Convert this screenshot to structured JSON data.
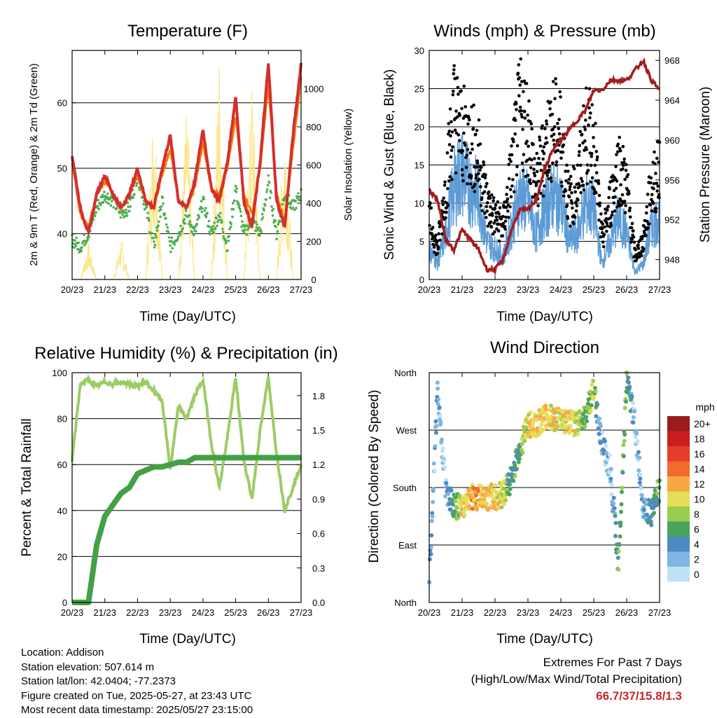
{
  "x_ticks": [
    "20/23",
    "21/23",
    "22/23",
    "23/23",
    "24/23",
    "25/23",
    "26/23",
    "27/23"
  ],
  "chart_data": [
    {
      "type": "line",
      "title": "Temperature (F)",
      "xlabel": "Time (Day/UTC)",
      "ylabel": "2m & 9m T (Red, Orange) & 2m Td (Green)",
      "y2label": "Solar Insolation (Yellow)",
      "ylim": [
        33,
        68
      ],
      "y_ticks": [
        40,
        50,
        60
      ],
      "y2lim": [
        0,
        1200
      ],
      "y2_ticks": [
        0,
        200,
        400,
        600,
        800,
        1000
      ],
      "x": [
        0,
        0.25,
        0.5,
        0.75,
        1,
        1.25,
        1.5,
        1.75,
        2,
        2.25,
        2.5,
        2.75,
        3,
        3.25,
        3.5,
        3.75,
        4,
        4.25,
        4.5,
        4.75,
        5,
        5.25,
        5.5,
        5.75,
        6,
        6.25,
        6.5,
        6.75,
        7
      ],
      "series": [
        {
          "name": "2m T",
          "color": "#d32f2f",
          "values": [
            52,
            44,
            40,
            46,
            49,
            46,
            44,
            46,
            50,
            45,
            44,
            50,
            55,
            45,
            44,
            48,
            56,
            47,
            45,
            51,
            61,
            45,
            41,
            51,
            66,
            45,
            41,
            55,
            66
          ]
        },
        {
          "name": "9m T",
          "color": "#f57c00",
          "values": [
            51,
            43,
            41,
            46,
            48,
            46,
            44,
            46,
            49,
            45,
            44,
            49,
            53,
            45,
            44,
            47,
            54,
            47,
            46,
            50,
            58,
            46,
            43,
            50,
            63,
            46,
            42,
            53,
            64
          ]
        },
        {
          "name": "2m Td",
          "color": "#4caf50",
          "values": [
            39,
            38,
            40,
            44,
            46,
            45,
            43,
            44,
            49,
            44,
            38,
            45,
            38,
            40,
            43,
            40,
            45,
            40,
            43,
            38,
            47,
            40,
            42,
            40,
            48,
            40,
            46,
            44,
            46
          ]
        },
        {
          "name": "Solar",
          "color": "#fde68a",
          "axis": "y2",
          "values": [
            0,
            0,
            200,
            0,
            0,
            0,
            220,
            0,
            0,
            0,
            1000,
            0,
            0,
            0,
            950,
            0,
            0,
            0,
            1200,
            0,
            0,
            0,
            1100,
            0,
            0,
            0,
            900,
            0,
            0
          ]
        }
      ]
    },
    {
      "type": "scatter",
      "title": "Winds (mph) & Pressure (mb)",
      "xlabel": "Time (Day/UTC)",
      "ylabel": "Sonic Wind & Gust (Blue, Black)",
      "y2label": "Station Pressure (Maroon)",
      "ylim": [
        0,
        30
      ],
      "y_ticks": [
        0,
        5,
        10,
        15,
        20,
        25,
        30
      ],
      "y2lim": [
        946,
        969
      ],
      "y2_ticks": [
        948,
        952,
        956,
        960,
        964,
        968
      ],
      "x": [
        0,
        0.25,
        0.5,
        0.75,
        1,
        1.25,
        1.5,
        1.75,
        2,
        2.25,
        2.5,
        2.75,
        3,
        3.25,
        3.5,
        3.75,
        4,
        4.25,
        4.5,
        4.75,
        5,
        5.25,
        5.5,
        5.75,
        6,
        6.25,
        6.5,
        6.75,
        7
      ],
      "series": [
        {
          "name": "Sonic Wind",
          "color": "#5c9bd6",
          "values": [
            4,
            2,
            6,
            12,
            14,
            12,
            11,
            5,
            4,
            3,
            7,
            11,
            10,
            6,
            9,
            11,
            10,
            5,
            6,
            10,
            9,
            2,
            5,
            8,
            6,
            1,
            2,
            7,
            8
          ]
        },
        {
          "name": "Gust",
          "color": "#000000",
          "values": [
            8,
            4,
            12,
            22,
            19,
            18,
            16,
            10,
            8,
            7,
            14,
            22,
            20,
            12,
            17,
            20,
            19,
            10,
            12,
            19,
            18,
            5,
            10,
            15,
            12,
            3,
            5,
            12,
            14
          ]
        },
        {
          "name": "Station Pressure",
          "color": "#a31d1d",
          "axis": "y2",
          "values": [
            955,
            954,
            950,
            949,
            951,
            950,
            949,
            947,
            947,
            948,
            951,
            953,
            953,
            954,
            957,
            959,
            960,
            961,
            962,
            963,
            965,
            965,
            966,
            966,
            966,
            967,
            968,
            966,
            965
          ]
        }
      ]
    },
    {
      "type": "line",
      "title": "Relative Humidity (%) & Precipitation (in)",
      "xlabel": "Time (Day/UTC)",
      "ylabel": "Percent & Total Rainfall",
      "ylim": [
        0,
        100
      ],
      "y_ticks": [
        0,
        20,
        40,
        60,
        80,
        100
      ],
      "y2lim": [
        0,
        2.0
      ],
      "y2_ticks": [
        "0.0",
        "0.3",
        "0.6",
        "0.9",
        "1.2",
        "1.5",
        "1.8"
      ],
      "x": [
        0,
        0.25,
        0.5,
        0.75,
        1,
        1.25,
        1.5,
        1.75,
        2,
        2.25,
        2.5,
        2.75,
        3,
        3.25,
        3.5,
        3.75,
        4,
        4.25,
        4.5,
        4.75,
        5,
        5.25,
        5.5,
        5.75,
        6,
        6.25,
        6.5,
        6.75,
        7
      ],
      "series": [
        {
          "name": "Relative Humidity",
          "color": "#9ccc65",
          "values": [
            62,
            95,
            97,
            94,
            96,
            95,
            96,
            95,
            94,
            96,
            92,
            88,
            58,
            85,
            80,
            90,
            97,
            70,
            50,
            72,
            98,
            62,
            45,
            75,
            98,
            65,
            40,
            50,
            60
          ]
        },
        {
          "name": "Total Precipitation",
          "color": "#43a047",
          "axis": "y2",
          "values": [
            0,
            0,
            0,
            0.5,
            0.75,
            0.85,
            0.95,
            1.0,
            1.12,
            1.15,
            1.18,
            1.18,
            1.2,
            1.22,
            1.22,
            1.26,
            1.26,
            1.26,
            1.26,
            1.26,
            1.26,
            1.26,
            1.26,
            1.26,
            1.26,
            1.26,
            1.26,
            1.26,
            1.26
          ]
        }
      ]
    },
    {
      "type": "scatter",
      "title": "Wind Direction",
      "xlabel": "Time (Day/UTC)",
      "ylabel": "Direction (Colored By Speed)",
      "y_labels": [
        "North",
        "East",
        "South",
        "West",
        "North"
      ],
      "ylim": [
        0,
        360
      ],
      "legend_title": "mph",
      "legend_labels": [
        "20+",
        "18",
        "16",
        "14",
        "12",
        "10",
        "8",
        "6",
        "4",
        "2",
        "0"
      ],
      "legend_colors": [
        "#9b1c1c",
        "#c8201f",
        "#e53d2b",
        "#f26a2e",
        "#f7a844",
        "#e6dd58",
        "#9ccc4f",
        "#4aa35d",
        "#4e8ac2",
        "#7fb6e3",
        "#bfe3f6"
      ],
      "x": [
        0,
        0.25,
        0.5,
        0.75,
        1,
        1.25,
        1.5,
        1.75,
        2,
        2.25,
        2.5,
        2.75,
        3,
        3.25,
        3.5,
        3.75,
        4,
        4.25,
        4.5,
        4.75,
        5,
        5.25,
        5.5,
        5.75,
        6,
        6.25,
        6.5,
        6.75,
        7
      ],
      "series": [
        {
          "name": "Direction",
          "values": [
            35,
            330,
            180,
            150,
            150,
            165,
            165,
            165,
            165,
            170,
            195,
            240,
            280,
            275,
            290,
            290,
            285,
            280,
            280,
            295,
            330,
            250,
            210,
            60,
            350,
            280,
            150,
            140,
            180
          ]
        },
        {
          "name": "Speed",
          "values": [
            3,
            2,
            1,
            6,
            10,
            12,
            12,
            11,
            11,
            9,
            5,
            6,
            10,
            11,
            11,
            10,
            10,
            11,
            9,
            7,
            8,
            2,
            1,
            6,
            7,
            1,
            2,
            5,
            6
          ]
        }
      ]
    }
  ],
  "info": {
    "location": "Location: Addison",
    "elevation": "Station elevation: 507.614 m",
    "latlon": "Station lat/lon: 42.0404; -77.2373",
    "created": "Figure created on Tue, 2025-05-27, at 23:43 UTC",
    "recent": "Most recent data timestamp: 2025/05/27 23:15:00"
  },
  "extremes": {
    "line1": "Extremes For Past 7 Days",
    "line2": "(High/Low/Max Wind/Total Precipitation)",
    "value": "66.7/37/15.8/1.3",
    "value_color": "#c62828"
  }
}
